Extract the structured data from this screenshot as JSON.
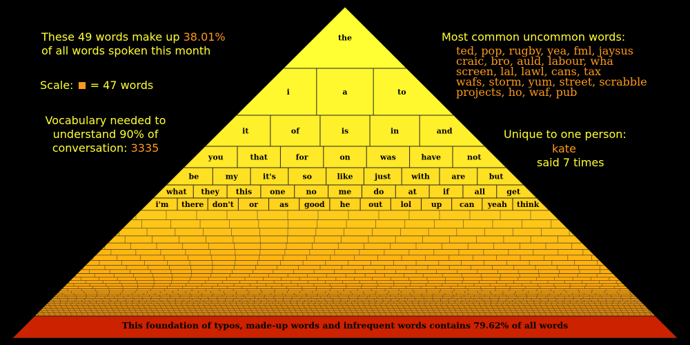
{
  "colors": {
    "background": "#000000",
    "yellow": "#ffff33",
    "orange": "#ff9a1a",
    "foundation": "#cc2200"
  },
  "left_panel": {
    "summary_prefix": "These 49 words make up",
    "summary_percent": "38.01%",
    "summary_suffix": "of all words spoken this month",
    "scale_label": "Scale:",
    "scale_value": "= 47 words",
    "vocab_line1": "Vocabulary needed to",
    "vocab_line2": "understand 90% of",
    "vocab_line3": "conversation:",
    "vocab_value": "3335"
  },
  "right_panel": {
    "uncommon_title": "Most common uncommon words:",
    "uncommon_lines": [
      "ted, pop, rugby, yea, fml, jaysus",
      "craic, bro, auld, labour, wha",
      "screen, lal, lawl, cans, tax",
      "wafs, storm, yum, street, scrabble",
      "projects, ho, waf, pub"
    ],
    "unique_title": "Unique to one person:",
    "unique_word": "kate",
    "unique_count": "said 7 times"
  },
  "pyramid": {
    "rows": [
      [
        "the"
      ],
      [
        "i",
        "a",
        "to"
      ],
      [
        "it",
        "of",
        "is",
        "in",
        "and"
      ],
      [
        "you",
        "that",
        "for",
        "on",
        "was",
        "have",
        "not"
      ],
      [
        "be",
        "my",
        "it's",
        "so",
        "like",
        "just",
        "with",
        "are",
        "but"
      ],
      [
        "what",
        "they",
        "this",
        "one",
        "no",
        "me",
        "do",
        "at",
        "if",
        "all",
        "get"
      ],
      [
        "i'm",
        "there",
        "don't",
        "or",
        "as",
        "good",
        "he",
        "out",
        "lol",
        "up",
        "can",
        "yeah",
        "think"
      ]
    ],
    "foundation_text": "This foundation of typos, made-up words and infrequent words contains 79.62% of all words"
  }
}
